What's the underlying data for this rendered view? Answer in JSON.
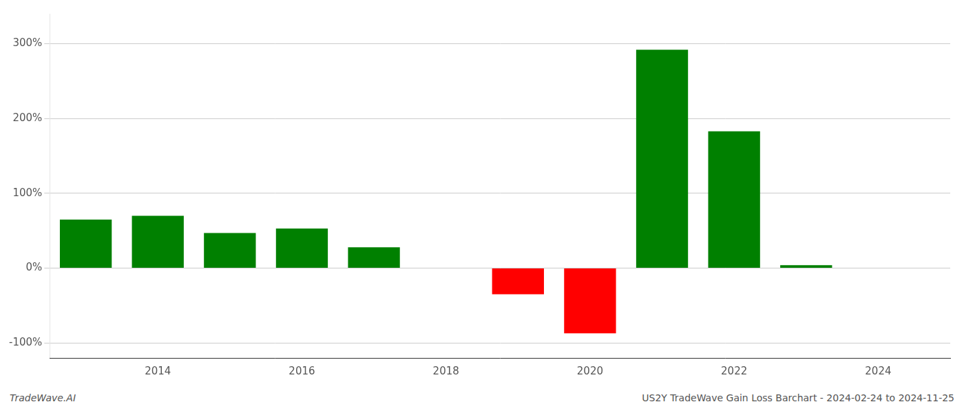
{
  "chart_data": {
    "type": "bar",
    "x": [
      2013,
      2014,
      2015,
      2016,
      2017,
      2019,
      2020,
      2021,
      2022,
      2023
    ],
    "values": [
      65,
      70,
      47,
      53,
      28,
      -35,
      -87,
      292,
      183,
      4
    ],
    "colors": [
      "#008000",
      "#008000",
      "#008000",
      "#008000",
      "#008000",
      "#ff0000",
      "#ff0000",
      "#008000",
      "#008000",
      "#008000"
    ],
    "xlim": [
      2012.5,
      2025.0
    ],
    "xticks": [
      2014,
      2016,
      2018,
      2020,
      2022,
      2024
    ],
    "ylim": [
      -120,
      340
    ],
    "yticks": [
      {
        "value": -100,
        "label": "-100%"
      },
      {
        "value": 0,
        "label": "0%"
      },
      {
        "value": 100,
        "label": "100%"
      },
      {
        "value": 200,
        "label": "200%"
      },
      {
        "value": 300,
        "label": "300%"
      }
    ],
    "grid": true,
    "annotations": [
      "TradeWave.AI",
      "US2Y TradeWave Gain Loss Barchart - 2024-02-24 to 2024-11-25"
    ]
  }
}
